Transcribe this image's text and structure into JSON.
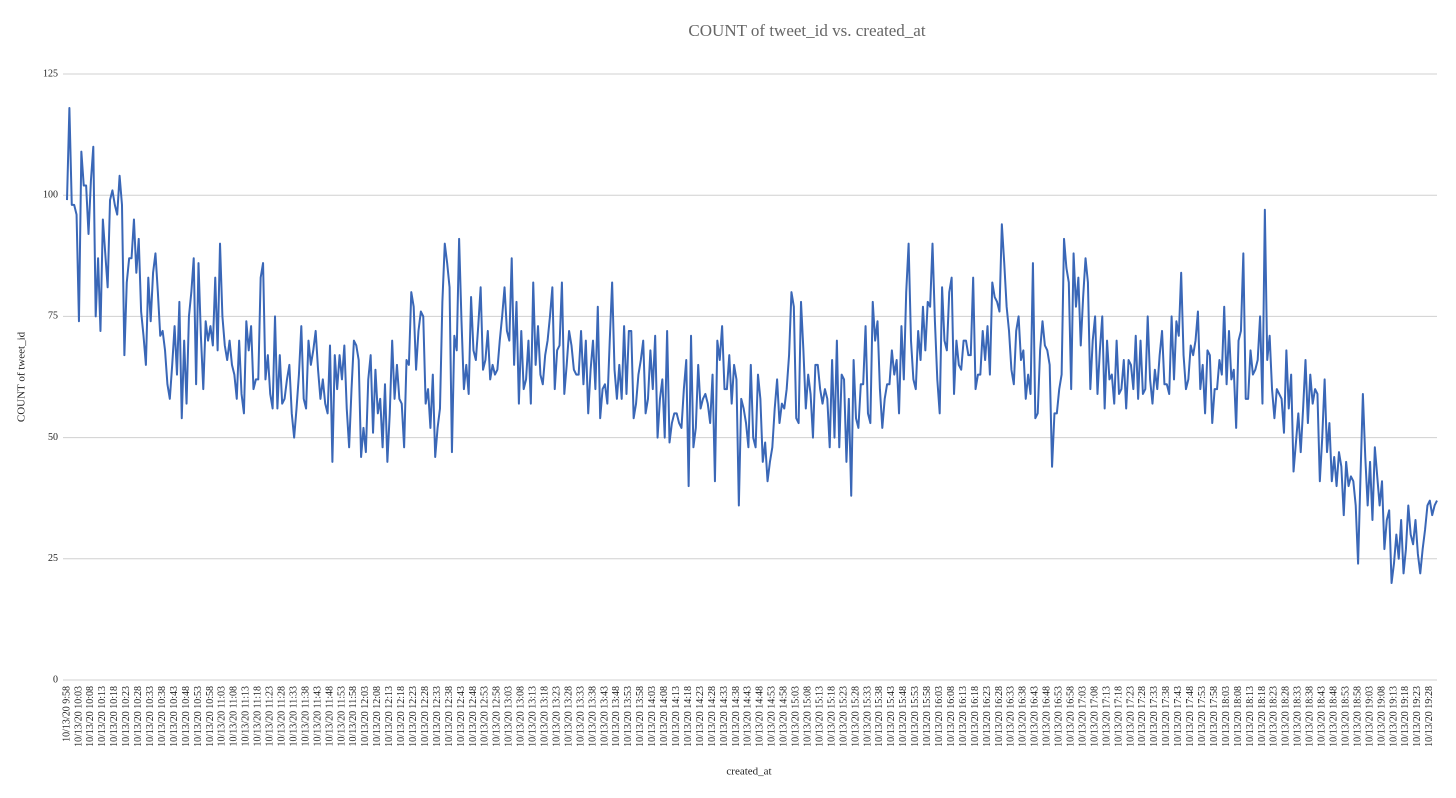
{
  "chart_data": {
    "type": "line",
    "title": "COUNT of tweet_id vs. created_at",
    "x_label": "created_at",
    "y_label": "COUNT of tweet_id",
    "color": "#3a67b7",
    "grid": true,
    "ylim": [
      0,
      125
    ],
    "yticks": [
      0,
      25,
      50,
      75,
      100,
      125
    ],
    "categories": [
      "10/13/20 9:58",
      null,
      null,
      null,
      null,
      "10/13/20 10:03",
      null,
      null,
      null,
      null,
      "10/13/20 10:08",
      null,
      null,
      null,
      null,
      "10/13/20 10:13",
      null,
      null,
      null,
      null,
      "10/13/20 10:18",
      null,
      null,
      null,
      null,
      "10/13/20 10:23",
      null,
      null,
      null,
      null,
      "10/13/20 10:28",
      null,
      null,
      null,
      null,
      "10/13/20 10:33",
      null,
      null,
      null,
      null,
      "10/13/20 10:38",
      null,
      null,
      null,
      null,
      "10/13/20 10:43",
      null,
      null,
      null,
      null,
      "10/13/20 10:48",
      null,
      null,
      null,
      null,
      "10/13/20 10:53",
      null,
      null,
      null,
      null,
      "10/13/20 10:58",
      null,
      null,
      null,
      null,
      "10/13/20 11:03",
      null,
      null,
      null,
      null,
      "10/13/20 11:08",
      null,
      null,
      null,
      null,
      "10/13/20 11:13",
      null,
      null,
      null,
      null,
      "10/13/20 11:18",
      null,
      null,
      null,
      null,
      "10/13/20 11:23",
      null,
      null,
      null,
      null,
      "10/13/20 11:28",
      null,
      null,
      null,
      null,
      "10/13/20 11:33",
      null,
      null,
      null,
      null,
      "10/13/20 11:38",
      null,
      null,
      null,
      null,
      "10/13/20 11:43",
      null,
      null,
      null,
      null,
      "10/13/20 11:48",
      null,
      null,
      null,
      null,
      "10/13/20 11:53",
      null,
      null,
      null,
      null,
      "10/13/20 11:58",
      null,
      null,
      null,
      null,
      "10/13/20 12:03",
      null,
      null,
      null,
      null,
      "10/13/20 12:08",
      null,
      null,
      null,
      null,
      "10/13/20 12:13",
      null,
      null,
      null,
      null,
      "10/13/20 12:18",
      null,
      null,
      null,
      null,
      "10/13/20 12:23",
      null,
      null,
      null,
      null,
      "10/13/20 12:28",
      null,
      null,
      null,
      null,
      "10/13/20 12:33",
      null,
      null,
      null,
      null,
      "10/13/20 12:38",
      null,
      null,
      null,
      null,
      "10/13/20 12:43",
      null,
      null,
      null,
      null,
      "10/13/20 12:48",
      null,
      null,
      null,
      null,
      "10/13/20 12:53",
      null,
      null,
      null,
      null,
      "10/13/20 12:58",
      null,
      null,
      null,
      null,
      "10/13/20 13:03",
      null,
      null,
      null,
      null,
      "10/13/20 13:08",
      null,
      null,
      null,
      null,
      "10/13/20 13:13",
      null,
      null,
      null,
      null,
      "10/13/20 13:18",
      null,
      null,
      null,
      null,
      "10/13/20 13:23",
      null,
      null,
      null,
      null,
      "10/13/20 13:28",
      null,
      null,
      null,
      null,
      "10/13/20 13:33",
      null,
      null,
      null,
      null,
      "10/13/20 13:38",
      null,
      null,
      null,
      null,
      "10/13/20 13:43",
      null,
      null,
      null,
      null,
      "10/13/20 13:48",
      null,
      null,
      null,
      null,
      "10/13/20 13:53",
      null,
      null,
      null,
      null,
      "10/13/20 13:58",
      null,
      null,
      null,
      null,
      "10/13/20 14:03",
      null,
      null,
      null,
      null,
      "10/13/20 14:08",
      null,
      null,
      null,
      null,
      "10/13/20 14:13",
      null,
      null,
      null,
      null,
      "10/13/20 14:18",
      null,
      null,
      null,
      null,
      "10/13/20 14:23",
      null,
      null,
      null,
      null,
      "10/13/20 14:28",
      null,
      null,
      null,
      null,
      "10/13/20 14:33",
      null,
      null,
      null,
      null,
      "10/13/20 14:38",
      null,
      null,
      null,
      null,
      "10/13/20 14:43",
      null,
      null,
      null,
      null,
      "10/13/20 14:48",
      null,
      null,
      null,
      null,
      "10/13/20 14:53",
      null,
      null,
      null,
      null,
      "10/13/20 14:58",
      null,
      null,
      null,
      null,
      "10/13/20 15:03",
      null,
      null,
      null,
      null,
      "10/13/20 15:08",
      null,
      null,
      null,
      null,
      "10/13/20 15:13",
      null,
      null,
      null,
      null,
      "10/13/20 15:18",
      null,
      null,
      null,
      null,
      "10/13/20 15:23",
      null,
      null,
      null,
      null,
      "10/13/20 15:28",
      null,
      null,
      null,
      null,
      "10/13/20 15:33",
      null,
      null,
      null,
      null,
      "10/13/20 15:38",
      null,
      null,
      null,
      null,
      "10/13/20 15:43",
      null,
      null,
      null,
      null,
      "10/13/20 15:48",
      null,
      null,
      null,
      null,
      "10/13/20 15:53",
      null,
      null,
      null,
      null,
      "10/13/20 15:58",
      null,
      null,
      null,
      null,
      "10/13/20 16:03",
      null,
      null,
      null,
      null,
      "10/13/20 16:08",
      null,
      null,
      null,
      null,
      "10/13/20 16:13",
      null,
      null,
      null,
      null,
      "10/13/20 16:18",
      null,
      null,
      null,
      null,
      "10/13/20 16:23",
      null,
      null,
      null,
      null,
      "10/13/20 16:28",
      null,
      null,
      null,
      null,
      "10/13/20 16:33",
      null,
      null,
      null,
      null,
      "10/13/20 16:38",
      null,
      null,
      null,
      null,
      "10/13/20 16:43",
      null,
      null,
      null,
      null,
      "10/13/20 16:48",
      null,
      null,
      null,
      null,
      "10/13/20 16:53",
      null,
      null,
      null,
      null,
      "10/13/20 16:58",
      null,
      null,
      null,
      null,
      "10/13/20 17:03",
      null,
      null,
      null,
      null,
      "10/13/20 17:08",
      null,
      null,
      null,
      null,
      "10/13/20 17:13",
      null,
      null,
      null,
      null,
      "10/13/20 17:18",
      null,
      null,
      null,
      null,
      "10/13/20 17:23",
      null,
      null,
      null,
      null,
      "10/13/20 17:28",
      null,
      null,
      null,
      null,
      "10/13/20 17:33",
      null,
      null,
      null,
      null,
      "10/13/20 17:38",
      null,
      null,
      null,
      null,
      "10/13/20 17:43",
      null,
      null,
      null,
      null,
      "10/13/20 17:48",
      null,
      null,
      null,
      null,
      "10/13/20 17:53",
      null,
      null,
      null,
      null,
      "10/13/20 17:58",
      null,
      null,
      null,
      null,
      "10/13/20 18:03",
      null,
      null,
      null,
      null,
      "10/13/20 18:08",
      null,
      null,
      null,
      null,
      "10/13/20 18:13",
      null,
      null,
      null,
      null,
      "10/13/20 18:18",
      null,
      null,
      null,
      null,
      "10/13/20 18:23",
      null,
      null,
      null,
      null,
      "10/13/20 18:28",
      null,
      null,
      null,
      null,
      "10/13/20 18:33",
      null,
      null,
      null,
      null,
      "10/13/20 18:38",
      null,
      null,
      null,
      null,
      "10/13/20 18:43",
      null,
      null,
      null,
      null,
      "10/13/20 18:48",
      null,
      null,
      null,
      null,
      "10/13/20 18:53",
      null,
      null,
      null,
      null,
      "10/13/20 18:58",
      null,
      null,
      null,
      null,
      "10/13/20 19:03",
      null,
      null,
      null,
      null,
      "10/13/20 19:08",
      null,
      null,
      null,
      null,
      "10/13/20 19:13",
      null,
      null,
      null,
      null,
      "10/13/20 19:18",
      null,
      null,
      null,
      null,
      "10/13/20 19:23",
      null,
      null,
      null,
      null,
      "10/13/20 19:28",
      null,
      null,
      null
    ],
    "values": [
      99,
      118,
      98,
      98,
      96,
      74,
      109,
      102,
      102,
      92,
      103,
      110,
      75,
      87,
      72,
      95,
      88,
      81,
      99,
      101,
      98,
      96,
      104,
      98,
      67,
      82,
      87,
      87,
      95,
      84,
      91,
      76,
      71,
      65,
      83,
      74,
      84,
      88,
      80,
      71,
      72,
      68,
      61,
      58,
      65,
      73,
      63,
      78,
      54,
      70,
      57,
      75,
      80,
      87,
      61,
      86,
      71,
      60,
      74,
      70,
      73,
      69,
      83,
      68,
      90,
      75,
      69,
      66,
      70,
      65,
      63,
      58,
      70,
      59,
      55,
      74,
      68,
      73,
      60,
      62,
      62,
      83,
      86,
      62,
      67,
      59,
      56,
      75,
      56,
      67,
      57,
      58,
      62,
      65,
      55,
      50,
      56,
      63,
      73,
      58,
      56,
      70,
      65,
      68,
      72,
      64,
      58,
      62,
      57,
      55,
      69,
      45,
      67,
      60,
      67,
      62,
      69,
      56,
      48,
      60,
      70,
      69,
      66,
      46,
      52,
      47,
      62,
      67,
      51,
      64,
      55,
      58,
      48,
      61,
      45,
      55,
      70,
      58,
      65,
      58,
      57,
      48,
      66,
      65,
      80,
      77,
      64,
      72,
      76,
      75,
      57,
      60,
      52,
      63,
      46,
      52,
      56,
      78,
      90,
      86,
      81,
      47,
      71,
      68,
      91,
      74,
      60,
      65,
      59,
      79,
      68,
      66,
      73,
      81,
      64,
      66,
      72,
      62,
      65,
      63,
      64,
      70,
      75,
      81,
      72,
      70,
      87,
      65,
      78,
      57,
      72,
      60,
      62,
      70,
      57,
      82,
      65,
      73,
      63,
      61,
      67,
      70,
      75,
      81,
      60,
      68,
      69,
      82,
      59,
      65,
      72,
      69,
      64,
      63,
      63,
      72,
      61,
      70,
      55,
      64,
      70,
      60,
      77,
      54,
      60,
      61,
      57,
      70,
      82,
      64,
      58,
      65,
      58,
      73,
      59,
      72,
      72,
      54,
      57,
      63,
      66,
      70,
      55,
      58,
      68,
      60,
      71,
      50,
      58,
      62,
      50,
      72,
      49,
      53,
      55,
      55,
      53,
      52,
      60,
      66,
      40,
      71,
      48,
      52,
      65,
      56,
      58,
      59,
      57,
      53,
      63,
      41,
      70,
      66,
      73,
      60,
      60,
      67,
      57,
      65,
      62,
      36,
      58,
      56,
      53,
      48,
      65,
      50,
      48,
      63,
      58,
      45,
      49,
      41,
      45,
      48,
      56,
      62,
      53,
      57,
      56,
      60,
      67,
      80,
      77,
      54,
      53,
      78,
      68,
      56,
      63,
      59,
      50,
      65,
      65,
      60,
      57,
      60,
      58,
      48,
      66,
      50,
      70,
      48,
      63,
      62,
      45,
      58,
      38,
      66,
      54,
      52,
      61,
      61,
      73,
      55,
      53,
      78,
      70,
      74,
      60,
      52,
      58,
      61,
      61,
      68,
      63,
      66,
      55,
      73,
      62,
      80,
      90,
      70,
      62,
      60,
      72,
      66,
      77,
      68,
      78,
      77,
      90,
      74,
      62,
      55,
      81,
      70,
      68,
      80,
      83,
      59,
      70,
      65,
      64,
      70,
      70,
      67,
      67,
      83,
      60,
      63,
      63,
      72,
      66,
      73,
      63,
      82,
      79,
      78,
      76,
      94,
      86,
      77,
      72,
      64,
      61,
      72,
      75,
      66,
      68,
      58,
      63,
      59,
      86,
      54,
      55,
      68,
      74,
      69,
      68,
      65,
      44,
      55,
      55,
      60,
      63,
      91,
      85,
      82,
      60,
      88,
      77,
      83,
      69,
      79,
      87,
      82,
      60,
      70,
      75,
      59,
      68,
      75,
      56,
      70,
      62,
      63,
      57,
      70,
      59,
      60,
      66,
      56,
      66,
      65,
      60,
      71,
      58,
      70,
      59,
      60,
      75,
      62,
      57,
      64,
      60,
      67,
      72,
      61,
      61,
      59,
      75,
      62,
      74,
      71,
      84,
      67,
      60,
      62,
      69,
      67,
      70,
      76,
      60,
      65,
      55,
      68,
      67,
      53,
      60,
      60,
      66,
      63,
      77,
      61,
      72,
      62,
      64,
      52,
      70,
      72,
      88,
      58,
      58,
      68,
      63,
      64,
      66,
      75,
      57,
      97,
      66,
      71,
      60,
      54,
      60,
      59,
      58,
      51,
      68,
      56,
      63,
      43,
      49,
      55,
      47,
      56,
      66,
      53,
      63,
      57,
      60,
      59,
      41,
      50,
      62,
      47,
      53,
      41,
      46,
      40,
      47,
      44,
      34,
      45,
      40,
      42,
      41,
      36,
      24,
      42,
      59,
      46,
      36,
      45,
      33,
      48,
      42,
      36,
      41,
      27,
      33,
      35,
      20,
      24,
      30,
      25,
      33,
      22,
      27,
      36,
      30,
      28,
      33,
      26,
      22,
      27,
      31,
      36,
      37,
      34,
      36,
      37
    ]
  }
}
